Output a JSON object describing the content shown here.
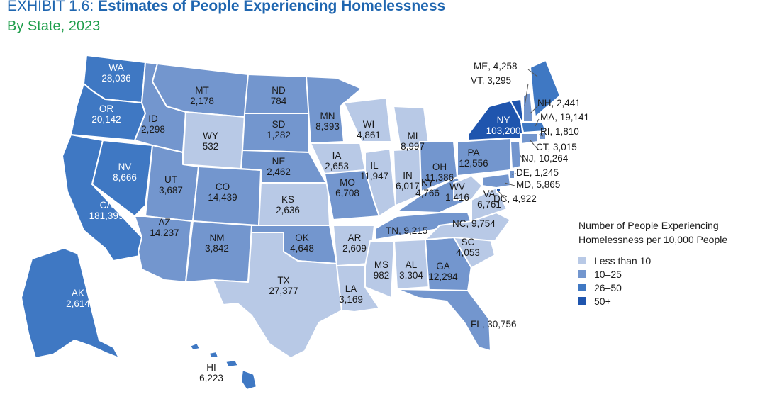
{
  "header": {
    "exhibit": "EXHIBIT 1.6:",
    "title": "Estimates of People Experiencing Homelessness",
    "subtitle": "By State, 2023"
  },
  "colors": {
    "less_than_10": "#b8c9e6",
    "10_25": "#7396ce",
    "26_50": "#3f78c3",
    "50_plus": "#1f55ae",
    "title": "#1f66b0",
    "subtitle": "#1e9e4b"
  },
  "legend": {
    "title_line1": "Number of People Experiencing",
    "title_line2": "Homelessness per 10,000 People",
    "items": [
      {
        "label": "Less than 10",
        "color": "#b8c9e6"
      },
      {
        "label": "10–25",
        "color": "#7396ce"
      },
      {
        "label": "26–50",
        "color": "#3f78c3"
      },
      {
        "label": "50+",
        "color": "#1f55ae"
      }
    ]
  },
  "states": [
    {
      "abbr": "WA",
      "value": "28,036",
      "category": "26_50"
    },
    {
      "abbr": "OR",
      "value": "20,142",
      "category": "26_50"
    },
    {
      "abbr": "CA",
      "value": "181,399",
      "category": "26_50"
    },
    {
      "abbr": "NV",
      "value": "8,666",
      "category": "26_50"
    },
    {
      "abbr": "ID",
      "value": "2,298",
      "category": "10_25"
    },
    {
      "abbr": "MT",
      "value": "2,178",
      "category": "10_25"
    },
    {
      "abbr": "WY",
      "value": "532",
      "category": "less_than_10"
    },
    {
      "abbr": "UT",
      "value": "3,687",
      "category": "10_25"
    },
    {
      "abbr": "AZ",
      "value": "14,237",
      "category": "10_25"
    },
    {
      "abbr": "CO",
      "value": "14,439",
      "category": "10_25"
    },
    {
      "abbr": "NM",
      "value": "3,842",
      "category": "10_25"
    },
    {
      "abbr": "ND",
      "value": "784",
      "category": "10_25"
    },
    {
      "abbr": "SD",
      "value": "1,282",
      "category": "10_25"
    },
    {
      "abbr": "NE",
      "value": "2,462",
      "category": "10_25"
    },
    {
      "abbr": "KS",
      "value": "2,636",
      "category": "less_than_10"
    },
    {
      "abbr": "OK",
      "value": "4,648",
      "category": "10_25"
    },
    {
      "abbr": "TX",
      "value": "27,377",
      "category": "less_than_10"
    },
    {
      "abbr": "MN",
      "value": "8,393",
      "category": "10_25"
    },
    {
      "abbr": "IA",
      "value": "2,653",
      "category": "less_than_10"
    },
    {
      "abbr": "MO",
      "value": "6,708",
      "category": "10_25"
    },
    {
      "abbr": "AR",
      "value": "2,609",
      "category": "less_than_10"
    },
    {
      "abbr": "LA",
      "value": "3,169",
      "category": "less_than_10"
    },
    {
      "abbr": "WI",
      "value": "4,861",
      "category": "less_than_10"
    },
    {
      "abbr": "IL",
      "value": "11,947",
      "category": "less_than_10"
    },
    {
      "abbr": "MS",
      "value": "982",
      "category": "less_than_10"
    },
    {
      "abbr": "MI",
      "value": "8,997",
      "category": "less_than_10"
    },
    {
      "abbr": "IN",
      "value": "6,017",
      "category": "less_than_10"
    },
    {
      "abbr": "OH",
      "value": "11,386",
      "category": "10_25"
    },
    {
      "abbr": "KY",
      "value": "4,766",
      "category": "10_25"
    },
    {
      "abbr": "TN",
      "value": "9,215",
      "category": "10_25"
    },
    {
      "abbr": "AL",
      "value": "3,304",
      "category": "less_than_10"
    },
    {
      "abbr": "GA",
      "value": "12,294",
      "category": "10_25"
    },
    {
      "abbr": "FL",
      "value": "30,756",
      "category": "10_25"
    },
    {
      "abbr": "SC",
      "value": "4,053",
      "category": "less_than_10"
    },
    {
      "abbr": "NC",
      "value": "9,754",
      "category": "less_than_10"
    },
    {
      "abbr": "VA",
      "value": "6,761",
      "category": "less_than_10"
    },
    {
      "abbr": "WV",
      "value": "1,416",
      "category": "less_than_10"
    },
    {
      "abbr": "PA",
      "value": "12,556",
      "category": "10_25"
    },
    {
      "abbr": "NY",
      "value": "103,200",
      "category": "50_plus"
    },
    {
      "abbr": "NJ",
      "value": "10,264",
      "category": "10_25"
    },
    {
      "abbr": "DE",
      "value": "1,245",
      "category": "10_25"
    },
    {
      "abbr": "MD",
      "value": "5,865",
      "category": "10_25"
    },
    {
      "abbr": "DC",
      "value": "4,922",
      "category": "50_plus"
    },
    {
      "abbr": "ME",
      "value": "4,258",
      "category": "26_50"
    },
    {
      "abbr": "VT",
      "value": "3,295",
      "category": "50_plus"
    },
    {
      "abbr": "NH",
      "value": "2,441",
      "category": "10_25"
    },
    {
      "abbr": "MA",
      "value": "19,141",
      "category": "26_50"
    },
    {
      "abbr": "RI",
      "value": "1,810",
      "category": "10_25"
    },
    {
      "abbr": "CT",
      "value": "3,015",
      "category": "10_25"
    },
    {
      "abbr": "AK",
      "value": "2,614",
      "category": "26_50"
    },
    {
      "abbr": "HI",
      "value": "6,223",
      "category": "26_50"
    }
  ]
}
